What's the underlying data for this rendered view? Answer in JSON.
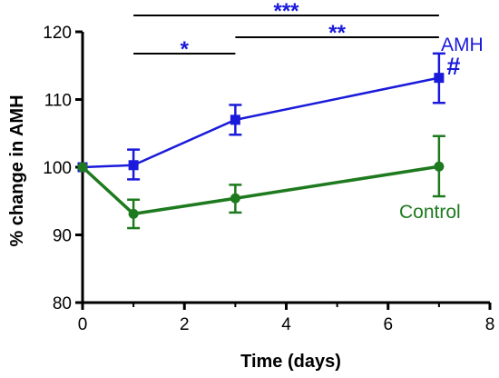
{
  "chart_data": {
    "type": "line",
    "xlabel": "Time (days)",
    "ylabel": "% change in AMH",
    "xlim": [
      0,
      8
    ],
    "ylim": [
      80,
      120
    ],
    "x_ticks": [
      "0",
      "2",
      "4",
      "6",
      "8"
    ],
    "y_ticks": [
      "80",
      "90",
      "100",
      "110",
      "120"
    ],
    "grid": false,
    "series": [
      {
        "name": "AMH",
        "color": "#1a1adb",
        "marker": "square",
        "x": [
          0,
          1,
          3,
          7
        ],
        "y": [
          100,
          100.3,
          107,
          113.2
        ],
        "err_low": [
          100,
          98.2,
          104.8,
          109.5
        ],
        "err_high": [
          100,
          102.6,
          109.2,
          116.8
        ]
      },
      {
        "name": "Control",
        "color": "#1e7a1e",
        "marker": "circle",
        "x": [
          0,
          1,
          3,
          7
        ],
        "y": [
          100,
          93.1,
          95.4,
          100.1
        ],
        "err_low": [
          100,
          91,
          93.3,
          95.7
        ],
        "err_high": [
          100,
          95.2,
          97.4,
          104.6
        ]
      }
    ],
    "significance": [
      {
        "label": "***",
        "x_start": 1,
        "x_end": 7,
        "color": "#1a1adb"
      },
      {
        "label": "*",
        "x_start": 1,
        "x_end": 3,
        "color": "#1a1adb"
      },
      {
        "label": "**",
        "x_start": 3,
        "x_end": 7,
        "color": "#1a1adb"
      }
    ],
    "annotations": [
      {
        "text": "#",
        "color": "#1a1adb"
      }
    ]
  }
}
